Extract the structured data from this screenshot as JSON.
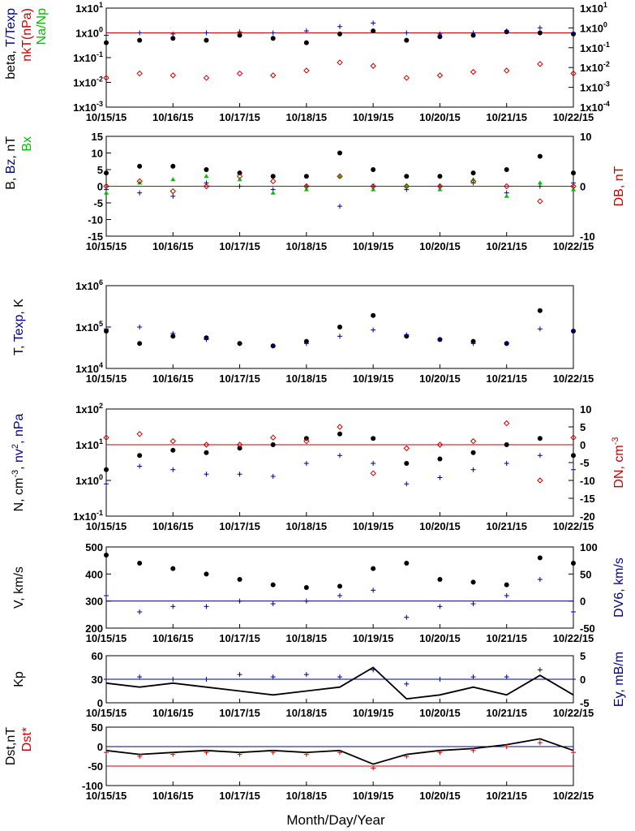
{
  "colors": {
    "black": "#000000",
    "red": "#cc0000",
    "blue": "#00008b",
    "green": "#00c000"
  },
  "xlabel": "Month/Day/Year",
  "date_ticks": [
    "10/15/15",
    "10/16/15",
    "10/17/15",
    "10/18/15",
    "10/19/15",
    "10/20/15",
    "10/21/15",
    "10/22/15"
  ],
  "panels": [
    {
      "id": "beta",
      "left_label": [
        {
          "text": "beta, ",
          "color": "black"
        },
        {
          "text": "T/Texp",
          "color": "blue"
        }
      ],
      "left_label2": [
        {
          "text": "nkT(nPa)",
          "color": "red"
        }
      ],
      "left_label3": [
        {
          "text": "Na/Np",
          "color": "green"
        }
      ],
      "right_label": [],
      "left_ticks": [
        {
          "base": "1x10",
          "exp": "1"
        },
        {
          "base": "1x10",
          "exp": "0"
        },
        {
          "base": "1x10",
          "exp": "-1"
        },
        {
          "base": "1x10",
          "exp": "-2"
        },
        {
          "base": "1x10",
          "exp": "-3"
        }
      ],
      "right_ticks": [
        {
          "base": "1x10",
          "exp": "1"
        },
        {
          "base": "1x10",
          "exp": "0"
        },
        {
          "base": "1x10",
          "exp": "-1"
        },
        {
          "base": "1x10",
          "exp": "-2"
        },
        {
          "base": "1x10",
          "exp": "-3"
        },
        {
          "base": "1x10",
          "exp": "-4"
        }
      ]
    },
    {
      "id": "bfield",
      "left_label": [
        {
          "text": "B, ",
          "color": "black"
        },
        {
          "text": "Bz",
          "color": "blue"
        },
        {
          "text": ", nT",
          "color": "black"
        }
      ],
      "left_label2": [
        {
          "text": "Bx",
          "color": "green"
        }
      ],
      "right_label": [
        {
          "text": "DB, nT",
          "color": "red"
        }
      ],
      "left_ticks": [
        "15",
        "10",
        "5",
        "0",
        "-5",
        "-10",
        "-15"
      ],
      "right_ticks": [
        "10",
        "0",
        "-10"
      ]
    },
    {
      "id": "temp",
      "left_label": [
        {
          "text": "T, ",
          "color": "black"
        },
        {
          "text": "Texp",
          "color": "blue"
        },
        {
          "text": ", K",
          "color": "black"
        }
      ],
      "right_label": [],
      "left_ticks": [
        {
          "base": "1x10",
          "exp": "6"
        },
        {
          "base": "1x10",
          "exp": "5"
        },
        {
          "base": "1x10",
          "exp": "4"
        }
      ],
      "right_ticks": []
    },
    {
      "id": "density",
      "left_label": [
        {
          "text": "N, cm",
          "color": "black"
        },
        {
          "text": "-3",
          "color": "black",
          "sup": true
        },
        {
          "text": ", ",
          "color": "black"
        },
        {
          "text": "nv",
          "color": "blue"
        },
        {
          "text": "2",
          "color": "blue",
          "sup": true
        },
        {
          "text": ", nPa",
          "color": "blue"
        }
      ],
      "right_label": [
        {
          "text": "DN, cm",
          "color": "red"
        },
        {
          "text": "-3",
          "color": "red",
          "sup": true
        }
      ],
      "left_ticks": [
        {
          "base": "1x10",
          "exp": "2"
        },
        {
          "base": "1x10",
          "exp": "1"
        },
        {
          "base": "1x10",
          "exp": "0"
        },
        {
          "base": "1x10",
          "exp": "-1"
        }
      ],
      "right_ticks": [
        "10",
        "5",
        "0",
        "-5",
        "-10",
        "-15",
        "-20"
      ]
    },
    {
      "id": "speed",
      "left_label": [
        {
          "text": "V, km/s",
          "color": "black"
        }
      ],
      "right_label": [
        {
          "text": "DV6, km/s",
          "color": "blue"
        }
      ],
      "left_ticks": [
        "500",
        "400",
        "300",
        "200"
      ],
      "right_ticks": [
        "100",
        "50",
        "0",
        "-50"
      ]
    },
    {
      "id": "kp",
      "left_label": [
        {
          "text": "Kp",
          "color": "black"
        }
      ],
      "right_label": [
        {
          "text": "Ey, mB/m",
          "color": "blue"
        }
      ],
      "left_ticks": [
        "60",
        "30",
        "0"
      ],
      "right_ticks": [
        "5",
        "0",
        "-5"
      ]
    },
    {
      "id": "dst",
      "left_label": [
        {
          "text": "Dst,nT",
          "color": "black"
        }
      ],
      "left_label2": [
        {
          "text": "Dst*",
          "color": "red"
        }
      ],
      "right_label": [],
      "left_ticks": [
        "50",
        "0",
        "-50",
        "-100"
      ],
      "right_ticks": []
    }
  ],
  "chart_data": [
    {
      "type": "scatter",
      "panel": "beta",
      "yscale": "log",
      "ylim": [
        0.001,
        10
      ],
      "y2lim": [
        0.0001,
        10
      ],
      "x": [
        0.0,
        0.5,
        1.0,
        1.5,
        2.0,
        2.5,
        3.0,
        3.5,
        4.0,
        4.5,
        5.0,
        5.5,
        6.0,
        6.5,
        7.0
      ],
      "series": [
        {
          "values": [
            0.4,
            0.5,
            0.6,
            0.5,
            0.8,
            0.6,
            0.4,
            0.9,
            1.2,
            0.5,
            0.7,
            0.8,
            1.1,
            1.0,
            0.9
          ]
        },
        {
          "values": [
            0.8,
            1.0,
            0.9,
            1.0,
            1.1,
            1.0,
            1.2,
            1.8,
            2.5,
            1.0,
            0.9,
            1.0,
            1.2,
            1.6,
            1.0
          ]
        },
        {
          "values": [
            0.003,
            0.005,
            0.004,
            0.003,
            0.005,
            0.004,
            0.007,
            0.018,
            0.012,
            0.003,
            0.004,
            0.006,
            0.007,
            0.015,
            0.005
          ]
        }
      ],
      "reference_line": {
        "y": 1,
        "color": "red"
      }
    },
    {
      "type": "scatter",
      "panel": "bfield",
      "ylim": [
        -15,
        15
      ],
      "y2lim": [
        -10,
        10
      ],
      "x": [
        0.0,
        0.5,
        1.0,
        1.5,
        2.0,
        2.5,
        3.0,
        3.5,
        4.0,
        4.5,
        5.0,
        5.5,
        6.0,
        6.5,
        7.0
      ],
      "series": [
        {
          "values": [
            4,
            6,
            6,
            5,
            4,
            3,
            3,
            10,
            5,
            3,
            3,
            4,
            5,
            9,
            4
          ]
        },
        {
          "values": [
            -1,
            -2,
            -3,
            1,
            0,
            -1,
            0,
            -6,
            0,
            -1,
            0,
            1,
            -2,
            0,
            1
          ]
        },
        {
          "values": [
            -2,
            1,
            2,
            3,
            2,
            -2,
            -1,
            3,
            -1,
            0,
            -1,
            2,
            -3,
            1,
            -1
          ]
        },
        {
          "values": [
            0,
            1,
            -1,
            0,
            2,
            1,
            0,
            2,
            0,
            0,
            0,
            1,
            0,
            -3,
            0
          ]
        }
      ],
      "reference_line": {
        "y": 0,
        "color": "red"
      }
    },
    {
      "type": "scatter",
      "panel": "temp",
      "yscale": "log",
      "ylim": [
        10000,
        1000000
      ],
      "x": [
        0.0,
        0.5,
        1.0,
        1.5,
        2.0,
        2.5,
        3.0,
        3.5,
        4.0,
        4.5,
        5.0,
        5.5,
        6.0,
        6.5,
        7.0
      ],
      "series": [
        {
          "values": [
            80000,
            40000,
            60000,
            55000,
            40000,
            35000,
            45000,
            100000,
            190000,
            60000,
            50000,
            45000,
            40000,
            250000,
            80000
          ]
        },
        {
          "values": [
            90000,
            100000,
            70000,
            50000,
            40000,
            35000,
            40000,
            60000,
            85000,
            65000,
            50000,
            40000,
            40000,
            90000,
            80000
          ]
        }
      ]
    },
    {
      "type": "scatter",
      "panel": "density",
      "yscale": "log",
      "ylim": [
        0.1,
        100
      ],
      "y2lim": [
        -20,
        10
      ],
      "x": [
        0.0,
        0.5,
        1.0,
        1.5,
        2.0,
        2.5,
        3.0,
        3.5,
        4.0,
        4.5,
        5.0,
        5.5,
        6.0,
        6.5,
        7.0
      ],
      "series": [
        {
          "values": [
            2,
            5,
            7,
            6,
            8,
            10,
            15,
            20,
            15,
            3,
            4,
            6,
            10,
            15,
            5
          ]
        },
        {
          "values": [
            0.8,
            2.5,
            2.0,
            1.5,
            1.5,
            1.3,
            3.0,
            5.0,
            3.0,
            0.8,
            1.2,
            2.0,
            3.0,
            5.0,
            2.0
          ]
        },
        {
          "values": [
            2,
            3,
            1,
            0,
            0,
            2,
            1,
            5,
            -8,
            -1,
            0,
            1,
            6,
            -10,
            2
          ]
        }
      ],
      "reference_line": {
        "y": 10,
        "color": "red"
      }
    },
    {
      "type": "scatter",
      "panel": "speed",
      "ylim": [
        200,
        500
      ],
      "y2lim": [
        -50,
        100
      ],
      "x": [
        0.0,
        0.5,
        1.0,
        1.5,
        2.0,
        2.5,
        3.0,
        3.5,
        4.0,
        4.5,
        5.0,
        5.5,
        6.0,
        6.5,
        7.0
      ],
      "series": [
        {
          "values": [
            470,
            440,
            420,
            400,
            380,
            360,
            350,
            355,
            420,
            440,
            380,
            370,
            360,
            460,
            440
          ]
        },
        {
          "values": [
            10,
            -20,
            -10,
            -10,
            0,
            -5,
            0,
            10,
            20,
            -30,
            -10,
            -5,
            10,
            40,
            -20
          ]
        }
      ],
      "reference_line": {
        "y": 0,
        "color": "blue",
        "axis": "y2"
      }
    },
    {
      "type": "line",
      "panel": "kp",
      "ylim": [
        0,
        60
      ],
      "y2lim": [
        -5,
        5
      ],
      "x": [
        0.0,
        0.5,
        1.0,
        1.5,
        2.0,
        2.5,
        3.0,
        3.5,
        4.0,
        4.5,
        5.0,
        5.5,
        6.0,
        6.5,
        7.0
      ],
      "series": [
        {
          "values": [
            25,
            20,
            25,
            20,
            15,
            10,
            15,
            20,
            45,
            5,
            10,
            20,
            10,
            35,
            10
          ]
        },
        {
          "values": [
            0,
            0.5,
            0,
            0,
            1,
            0.5,
            1,
            0.5,
            2,
            -1,
            0,
            0.5,
            0.5,
            2,
            0
          ]
        }
      ],
      "reference_line": {
        "y": 0,
        "color": "blue",
        "axis": "y2"
      }
    },
    {
      "type": "line",
      "panel": "dst",
      "ylim": [
        -100,
        50
      ],
      "x": [
        0.0,
        0.5,
        1.0,
        1.5,
        2.0,
        2.5,
        3.0,
        3.5,
        4.0,
        4.5,
        5.0,
        5.5,
        6.0,
        6.5,
        7.0
      ],
      "series": [
        {
          "values": [
            -10,
            -20,
            -15,
            -10,
            -15,
            -10,
            -15,
            -10,
            -45,
            -20,
            -10,
            -5,
            5,
            20,
            -10
          ]
        },
        {
          "values": [
            -15,
            -25,
            -20,
            -15,
            -20,
            -15,
            -20,
            -15,
            -55,
            -25,
            -15,
            -10,
            0,
            10,
            -15
          ]
        }
      ],
      "reference_lines": [
        {
          "y": 0,
          "color": "blue"
        },
        {
          "y": -50,
          "color": "red"
        }
      ]
    }
  ]
}
